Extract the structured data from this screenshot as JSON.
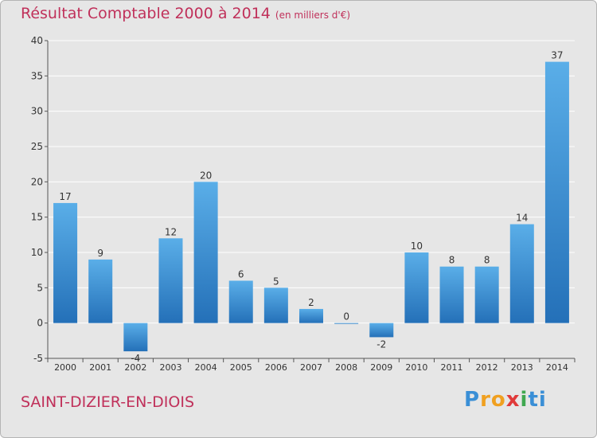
{
  "title": "Résultat Comptable 2000 à 2014",
  "unit": "(en milliers d'€)",
  "location": "SAINT-DIZIER-EN-DIOIS",
  "logo": {
    "text": "Proxiti",
    "letters": [
      "P",
      "r",
      "o",
      "x",
      "i",
      "t",
      "i"
    ],
    "colors": [
      "#3a8fd6",
      "#f0a020",
      "#f0a020",
      "#e03a3a",
      "#40a850",
      "#3a8fd6",
      "#3a8fd6"
    ]
  },
  "colors": {
    "title": "#c0305a",
    "bar_top": "#5aaee8",
    "bar_bottom": "#2470b8",
    "grid": "#ffffff",
    "background": "#e6e6e6"
  },
  "chart_data": {
    "type": "bar",
    "categories": [
      "2000",
      "2001",
      "2002",
      "2003",
      "2004",
      "2005",
      "2006",
      "2007",
      "2008",
      "2009",
      "2010",
      "2011",
      "2012",
      "2013",
      "2014"
    ],
    "values": [
      17,
      9,
      -4,
      12,
      20,
      6,
      5,
      2,
      0,
      -2,
      10,
      8,
      8,
      14,
      37
    ],
    "ylim": [
      -5,
      40
    ],
    "yticks": [
      -5,
      0,
      5,
      10,
      15,
      20,
      25,
      30,
      35,
      40
    ],
    "grid": true,
    "title": "Résultat Comptable 2000 à 2014",
    "xlabel": "",
    "ylabel": ""
  }
}
